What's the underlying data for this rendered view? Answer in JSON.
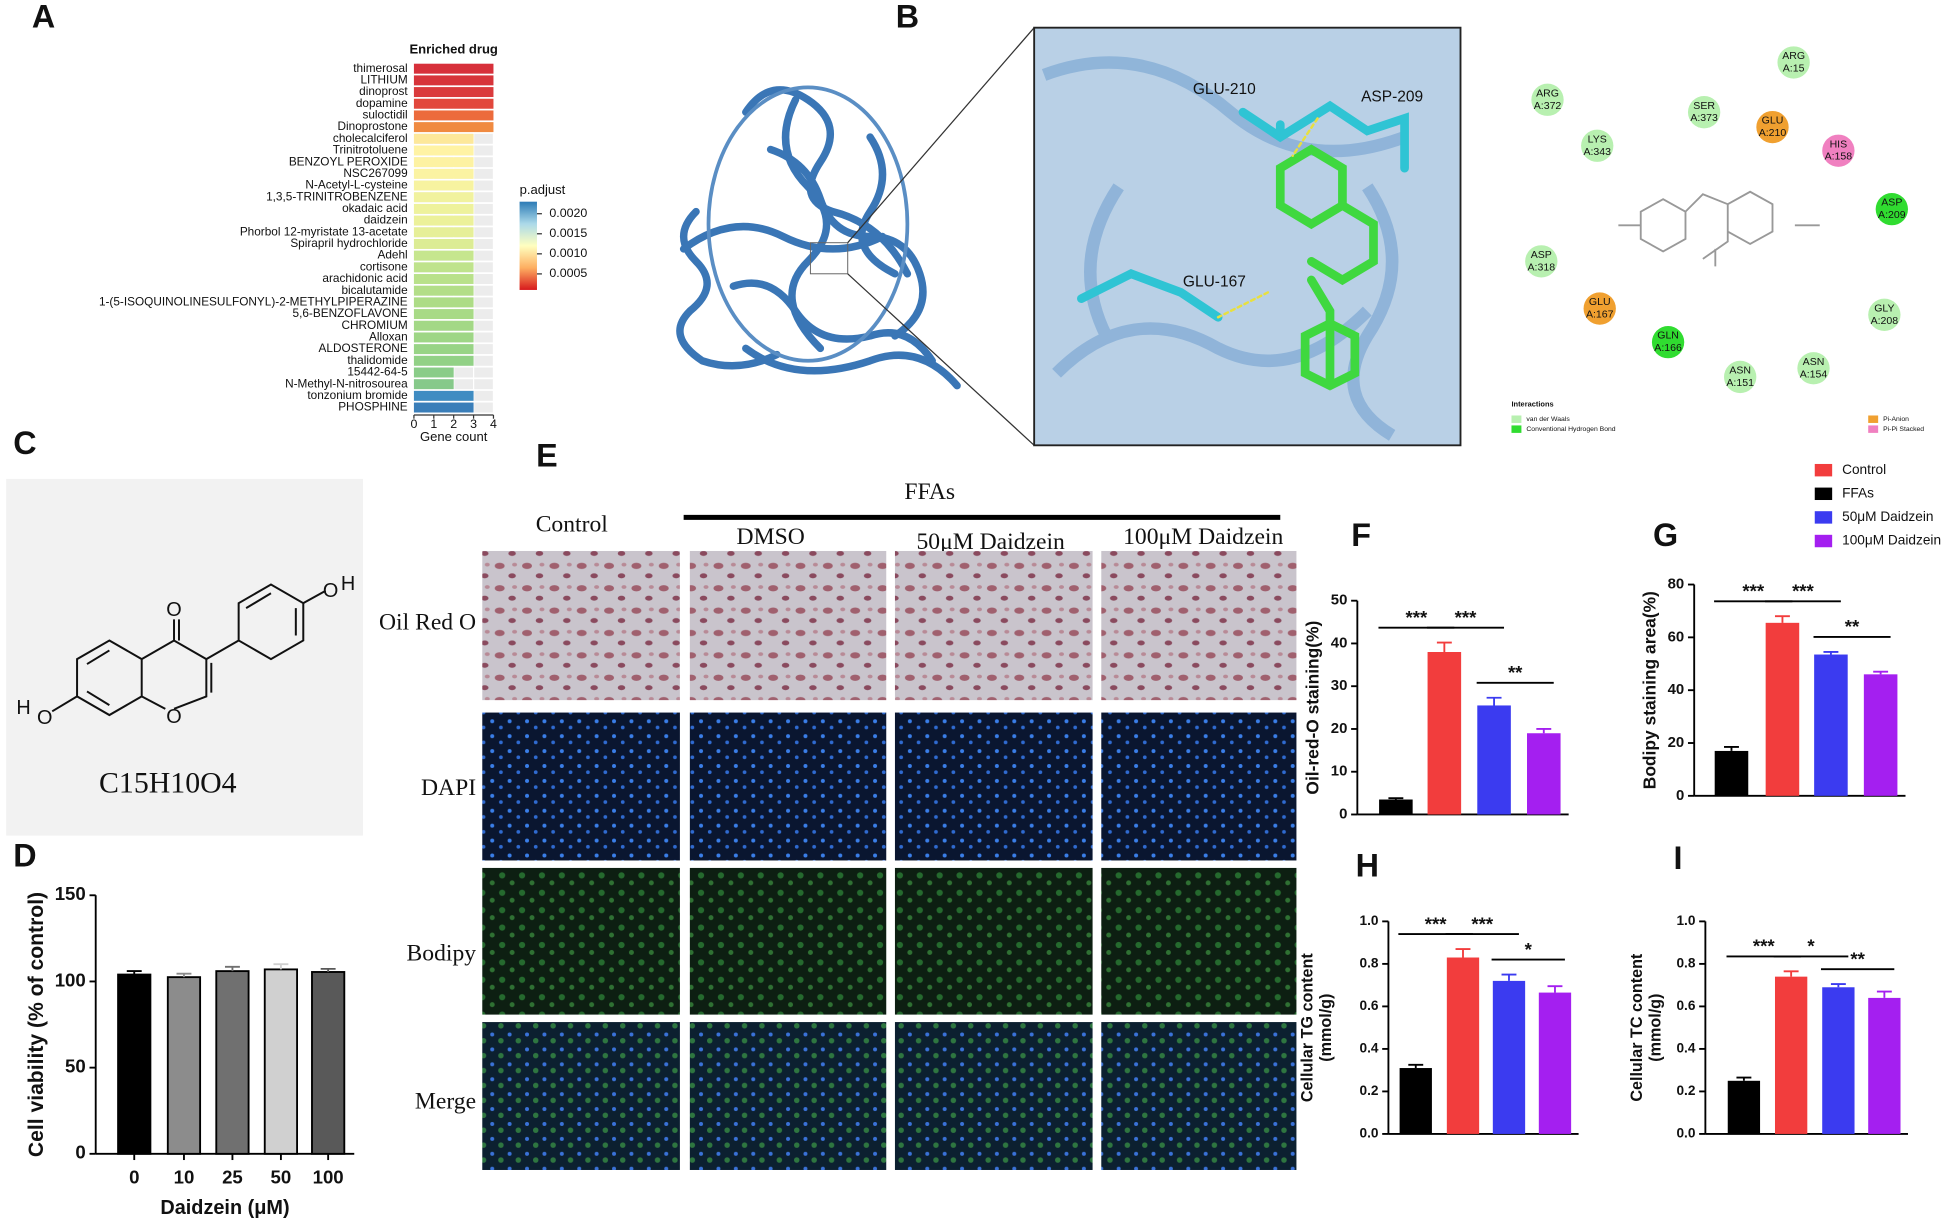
{
  "panel_labels": [
    "A",
    "B",
    "C",
    "D",
    "E",
    "F",
    "G",
    "H",
    "I"
  ],
  "chart_data": [
    {
      "type": "barh",
      "title": "Enriched drug",
      "xlabel": "Gene count",
      "categories": [
        "thimerosal",
        "LITHIUM",
        "dinoprost",
        "dopamine",
        "suloctidil",
        "Dinoprostone",
        "cholecalciferol",
        "Trinitrotoluene",
        "BENZOYL PEROXIDE",
        "NSC267099",
        "N-Acetyl-L-cysteine",
        "1,3,5-TRINITROBENZENE",
        "okadaic acid",
        "daidzein",
        "Phorbol 12-myristate 13-acetate",
        "Spirapril hydrochloride",
        "Adehl",
        "cortisone",
        "arachidonic acid",
        "bicalutamide",
        "1-(5-ISOQUINOLINESULFONYL)-2-METHYLPIPERAZINE",
        "5,6-BENZOFLAVONE",
        "CHROMIUM",
        "Alloxan",
        "ALDOSTERONE",
        "thalidomide",
        "15442-64-5",
        "N-Methyl-N-nitrosourea",
        "tonzonium bromide",
        "PHOSPHINE"
      ],
      "values": [
        4,
        4,
        4,
        4,
        4,
        4,
        3,
        3,
        3,
        3,
        3,
        3,
        3,
        3,
        3,
        3,
        3,
        3,
        3,
        3,
        3,
        3,
        3,
        3,
        3,
        3,
        2,
        2,
        3,
        3
      ],
      "colors": [
        "#d7303a",
        "#d7343a",
        "#da3a3c",
        "#e2473c",
        "#ec6b3c",
        "#f08a40",
        "#fde89a",
        "#fff3a4",
        "#fdf2a2",
        "#fbf3a2",
        "#f7f3a0",
        "#f1f29e",
        "#eef29c",
        "#ecf19a",
        "#e6ef98",
        "#dcec94",
        "#c6e68e",
        "#bfe38c",
        "#b9e18a",
        "#b3de88",
        "#addc86",
        "#a8da86",
        "#a3d886",
        "#9ed686",
        "#98d486",
        "#92d186",
        "#8acc88",
        "#86c98a",
        "#3f8cc2",
        "#3a7eb9"
      ],
      "highlight": "daidzein",
      "highlight_color": "#e02020",
      "xlim": [
        0,
        4
      ],
      "xticks": [
        0,
        1,
        2,
        3,
        4
      ],
      "colorbar_title": "p.adjust",
      "colorbar_lim": [
        0.0001,
        0.0023
      ],
      "colorbar_ticks": [
        {
          "value": 0.002,
          "label": "0.0020"
        },
        {
          "value": 0.0015,
          "label": "0.0015"
        },
        {
          "value": 0.001,
          "label": "0.0010"
        },
        {
          "value": 0.0005,
          "label": "0.0005"
        }
      ]
    },
    {
      "type": "bar",
      "xlabel": "Daidzein (μM)",
      "ylabel": [
        "Cell viability (% of control)"
      ],
      "categories": [
        "0",
        "10",
        "25",
        "50",
        "100"
      ],
      "values": [
        104,
        102.5,
        106,
        107,
        105.5
      ],
      "errors": [
        2,
        2,
        2.5,
        3,
        1.8
      ],
      "colors": [
        "#000000",
        "#8c8c8c",
        "#707070",
        "#d0d0d0",
        "#595959"
      ],
      "ylim": [
        0,
        150
      ],
      "yticks": [
        0,
        50,
        100,
        150
      ],
      "annotations": []
    },
    {
      "type": "bar",
      "ylabel": [
        "Oil-red-O staining(%)"
      ],
      "categories": [
        null,
        null,
        null,
        null
      ],
      "values": [
        3.5,
        38,
        25.5,
        19
      ],
      "errors": [
        0.3,
        2.2,
        1.8,
        1
      ],
      "colors": [
        "#000000",
        "#f23d3d",
        "#3b3bf0",
        "#a41ff0"
      ],
      "ylim": [
        0,
        50
      ],
      "yticks": [
        0,
        10,
        20,
        30,
        40,
        50
      ],
      "annotations": [
        {
          "label": "***",
          "from": 0,
          "to": 1
        },
        {
          "label": "***",
          "from": 1,
          "to": 2
        },
        {
          "label": "**",
          "from": 2,
          "to": 3
        }
      ]
    },
    {
      "type": "bar",
      "ylabel": [
        "Bodipy staining area(%)"
      ],
      "categories": [
        null,
        null,
        null,
        null
      ],
      "values": [
        17,
        65.5,
        53.5,
        46
      ],
      "errors": [
        1.5,
        2.5,
        1,
        1
      ],
      "colors": [
        "#000000",
        "#f23d3d",
        "#3b3bf0",
        "#a41ff0"
      ],
      "ylim": [
        0,
        80
      ],
      "yticks": [
        0,
        20,
        40,
        60,
        80
      ],
      "annotations": [
        {
          "label": "***",
          "from": 0,
          "to": 1
        },
        {
          "label": "***",
          "from": 1,
          "to": 2
        },
        {
          "label": "**",
          "from": 2,
          "to": 3
        }
      ]
    },
    {
      "type": "bar",
      "ylabel": [
        "Cellular TG content",
        "(mmol/g)"
      ],
      "categories": [
        null,
        null,
        null,
        null
      ],
      "values": [
        0.31,
        0.83,
        0.72,
        0.665
      ],
      "errors": [
        0.015,
        0.04,
        0.03,
        0.03
      ],
      "colors": [
        "#000000",
        "#f23d3d",
        "#3b3bf0",
        "#a41ff0"
      ],
      "ylim": [
        0,
        1
      ],
      "yticks": [
        {
          "value": 0,
          "label": "0.0"
        },
        0.2,
        0.4,
        0.6,
        0.8,
        {
          "value": 1,
          "label": "1.0"
        }
      ],
      "annotations": [
        {
          "label": "***",
          "from": 0,
          "to": 1
        },
        {
          "label": "***",
          "from": 1,
          "to": 2
        },
        {
          "label": "*",
          "from": 2,
          "to": 3
        }
      ]
    },
    {
      "type": "bar",
      "ylabel": [
        "Cellular TC content",
        "(mmol/g)"
      ],
      "categories": [
        null,
        null,
        null,
        null
      ],
      "values": [
        0.25,
        0.74,
        0.69,
        0.64
      ],
      "errors": [
        0.015,
        0.025,
        0.015,
        0.03
      ],
      "colors": [
        "#000000",
        "#f23d3d",
        "#3b3bf0",
        "#a41ff0"
      ],
      "ylim": [
        0,
        1
      ],
      "yticks": [
        {
          "value": 0,
          "label": "0.0"
        },
        0.2,
        0.4,
        0.6,
        0.8,
        {
          "value": 1,
          "label": "1.0"
        }
      ],
      "annotations": [
        {
          "label": "***",
          "from": 0,
          "to": 1
        },
        {
          "label": "*",
          "from": 1,
          "to": 2
        },
        {
          "label": "**",
          "from": 2,
          "to": 3
        }
      ]
    }
  ],
  "legend": [
    {
      "name": "Control",
      "color": "#f23d3d"
    },
    {
      "name": "FFAs",
      "color": "#000000"
    },
    {
      "name": "50μM Daidzein",
      "color": "#3b3bf0"
    },
    {
      "name": "100μM Daidzein",
      "color": "#a41ff0"
    }
  ],
  "panel_b": {
    "zoom_labels": [
      "GLU-210",
      "ASP-209",
      "GLU-167"
    ],
    "residues": [
      {
        "name": "ARG",
        "id": "A:15",
        "color": "#b8f0b0"
      },
      {
        "name": "ARG",
        "id": "A:372",
        "color": "#b8f0b0"
      },
      {
        "name": "SER",
        "id": "A:373",
        "color": "#b8f0b0"
      },
      {
        "name": "GLU",
        "id": "A:210",
        "color": "#f0a030"
      },
      {
        "name": "LYS",
        "id": "A:343",
        "color": "#b8f0b0"
      },
      {
        "name": "HIS",
        "id": "A:158",
        "color": "#f080c0"
      },
      {
        "name": "ASP",
        "id": "A:209",
        "color": "#30dc30"
      },
      {
        "name": "ASP",
        "id": "A:318",
        "color": "#b8f0b0"
      },
      {
        "name": "GLU",
        "id": "A:167",
        "color": "#f0a030"
      },
      {
        "name": "GLN",
        "id": "A:166",
        "color": "#30dc30"
      },
      {
        "name": "GLY",
        "id": "A:208",
        "color": "#b8f0b0"
      },
      {
        "name": "ASN",
        "id": "A:154",
        "color": "#b8f0b0"
      },
      {
        "name": "ASN",
        "id": "A:151",
        "color": "#b8f0b0"
      }
    ],
    "legend_title": "Interactions",
    "legend": [
      {
        "name": "van der Waals",
        "color": "#b8f0b0"
      },
      {
        "name": "Conventional Hydrogen Bond",
        "color": "#30dc30"
      },
      {
        "name": "Pi-Anion",
        "color": "#f0a030"
      },
      {
        "name": "Pi-Pi Stacked",
        "color": "#f080c0"
      }
    ]
  },
  "panel_c": {
    "formula": "C15H10O4",
    "atoms": [
      {
        "label": "O",
        "color": "#e03030"
      },
      {
        "label": "O",
        "color": "#e03030"
      },
      {
        "label": "H",
        "color": "#4a9a9a"
      },
      {
        "label": "O",
        "color": "#e03030"
      },
      {
        "label": "H",
        "color": "#4a9a9a"
      },
      {
        "label": "O",
        "color": "#e03030"
      }
    ]
  },
  "panel_e": {
    "group": "FFAs",
    "columns": [
      "Control",
      "DMSO",
      "50μM Daidzein",
      "100μM Daidzein"
    ],
    "rows": [
      "Oil Red O",
      "DAPI",
      "Bodipy",
      "Merge"
    ]
  }
}
